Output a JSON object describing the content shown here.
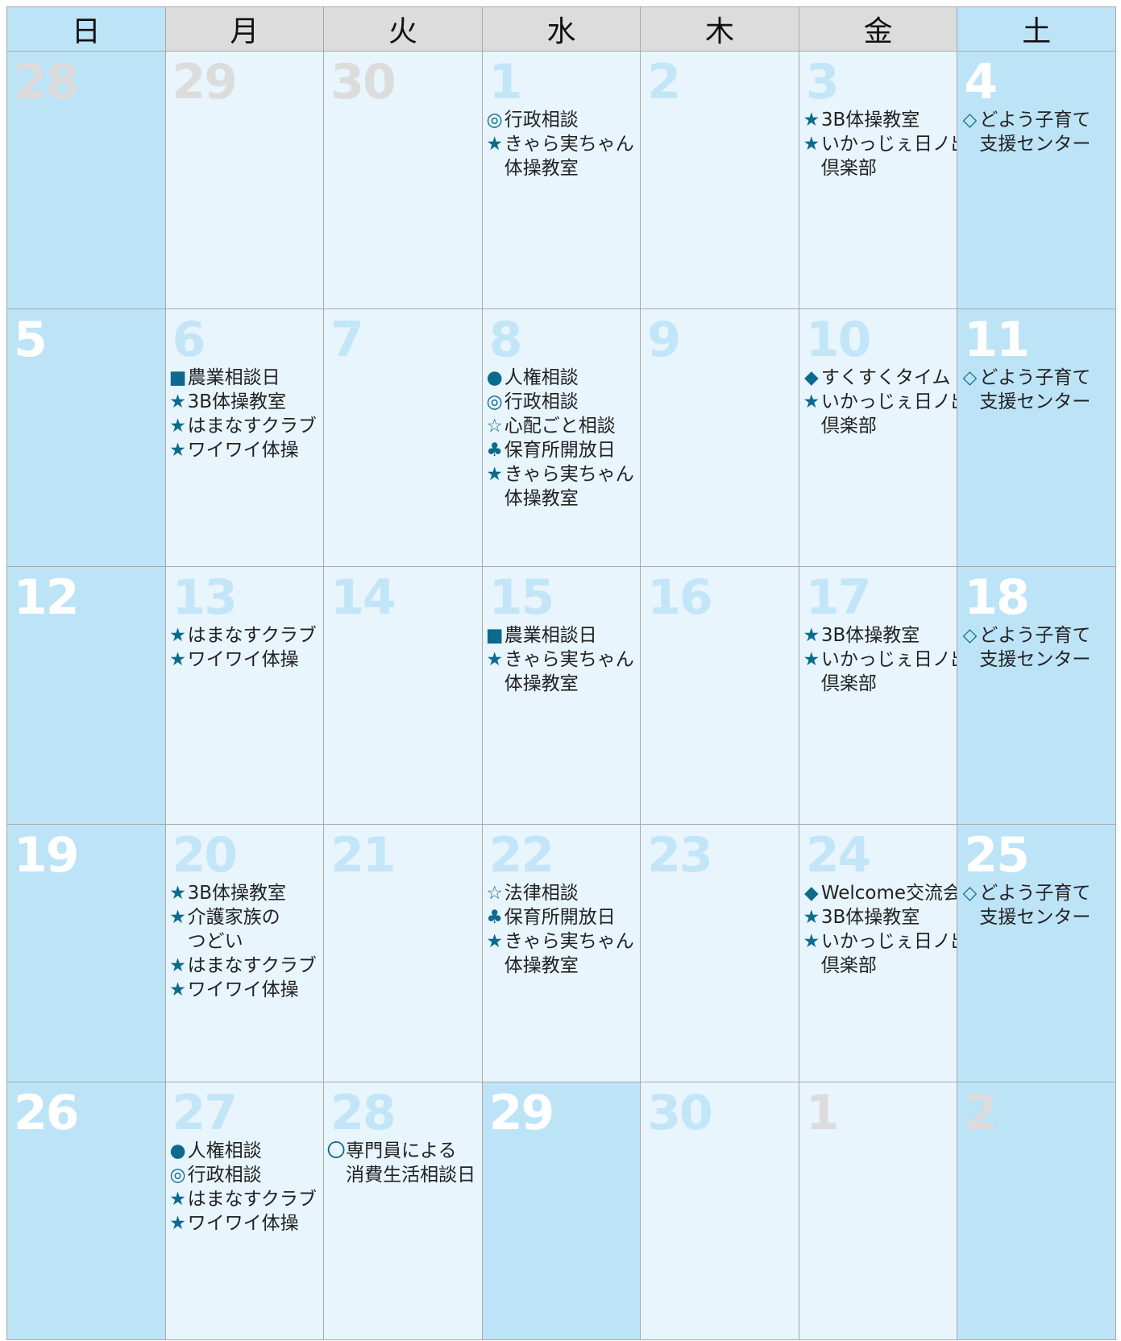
{
  "header": {
    "days": [
      "日",
      "月",
      "火",
      "水",
      "木",
      "金",
      "土"
    ]
  },
  "weeks": [
    [
      {
        "date": 28,
        "events": []
      },
      {
        "date": 29,
        "events": []
      },
      {
        "date": 30,
        "events": []
      },
      {
        "date": 1,
        "events": [
          {
            "mark": "◎",
            "lines": [
              "行政相談"
            ]
          },
          {
            "mark": "★",
            "lines": [
              "きゃら実ちゃん",
              "体操教室"
            ]
          }
        ]
      },
      {
        "date": 2,
        "events": []
      },
      {
        "date": 3,
        "events": [
          {
            "mark": "★",
            "lines": [
              "3B体操教室"
            ]
          },
          {
            "mark": "★",
            "lines": [
              "いかっじぇ日ノ出",
              "倶楽部"
            ]
          }
        ]
      },
      {
        "date": 4,
        "events": [
          {
            "mark": "◇",
            "lines": [
              "どよう子育て",
              "支援センター"
            ]
          }
        ]
      }
    ],
    [
      {
        "date": 5,
        "events": []
      },
      {
        "date": 6,
        "events": [
          {
            "mark": "■",
            "lines": [
              "農業相談日"
            ]
          },
          {
            "mark": "★",
            "lines": [
              "3B体操教室"
            ]
          },
          {
            "mark": "★",
            "lines": [
              "はまなすクラブ"
            ]
          },
          {
            "mark": "★",
            "lines": [
              "ワイワイ体操"
            ]
          }
        ]
      },
      {
        "date": 7,
        "events": []
      },
      {
        "date": 8,
        "events": [
          {
            "mark": "●",
            "lines": [
              "人権相談"
            ]
          },
          {
            "mark": "◎",
            "lines": [
              "行政相談"
            ]
          },
          {
            "mark": "☆",
            "lines": [
              "心配ごと相談"
            ]
          },
          {
            "mark": "♣",
            "lines": [
              "保育所開放日"
            ]
          },
          {
            "mark": "★",
            "lines": [
              "きゃら実ちゃん",
              "体操教室"
            ]
          }
        ]
      },
      {
        "date": 9,
        "events": []
      },
      {
        "date": 10,
        "events": [
          {
            "mark": "◆",
            "lines": [
              "すくすくタイム"
            ]
          },
          {
            "mark": "★",
            "lines": [
              "いかっじぇ日ノ出",
              "倶楽部"
            ]
          }
        ]
      },
      {
        "date": 11,
        "events": [
          {
            "mark": "◇",
            "lines": [
              "どよう子育て",
              "支援センター"
            ]
          }
        ]
      }
    ],
    [
      {
        "date": 12,
        "events": []
      },
      {
        "date": 13,
        "events": [
          {
            "mark": "★",
            "lines": [
              "はまなすクラブ"
            ]
          },
          {
            "mark": "★",
            "lines": [
              "ワイワイ体操"
            ]
          }
        ]
      },
      {
        "date": 14,
        "events": []
      },
      {
        "date": 15,
        "events": [
          {
            "mark": "■",
            "lines": [
              "農業相談日"
            ]
          },
          {
            "mark": "★",
            "lines": [
              "きゃら実ちゃん",
              "体操教室"
            ]
          }
        ]
      },
      {
        "date": 16,
        "events": []
      },
      {
        "date": 17,
        "events": [
          {
            "mark": "★",
            "lines": [
              "3B体操教室"
            ]
          },
          {
            "mark": "★",
            "lines": [
              "いかっじぇ日ノ出",
              "倶楽部"
            ]
          }
        ]
      },
      {
        "date": 18,
        "events": [
          {
            "mark": "◇",
            "lines": [
              "どよう子育て",
              "支援センター"
            ]
          }
        ]
      }
    ],
    [
      {
        "date": 19,
        "events": []
      },
      {
        "date": 20,
        "events": [
          {
            "mark": "★",
            "lines": [
              "3B体操教室"
            ]
          },
          {
            "mark": "★",
            "lines": [
              "介護家族の",
              "つどい"
            ]
          },
          {
            "mark": "★",
            "lines": [
              "はまなすクラブ"
            ]
          },
          {
            "mark": "★",
            "lines": [
              "ワイワイ体操"
            ]
          }
        ]
      },
      {
        "date": 21,
        "events": []
      },
      {
        "date": 22,
        "events": [
          {
            "mark": "☆",
            "lines": [
              "法律相談"
            ]
          },
          {
            "mark": "♣",
            "lines": [
              "保育所開放日"
            ]
          },
          {
            "mark": "★",
            "lines": [
              "きゃら実ちゃん",
              "体操教室"
            ]
          }
        ]
      },
      {
        "date": 23,
        "events": []
      },
      {
        "date": 24,
        "events": [
          {
            "mark": "◆",
            "lines": [
              "Welcome交流会"
            ]
          },
          {
            "mark": "★",
            "lines": [
              "3B体操教室"
            ]
          },
          {
            "mark": "★",
            "lines": [
              "いかっじぇ日ノ出",
              "倶楽部"
            ]
          }
        ]
      },
      {
        "date": 25,
        "events": [
          {
            "mark": "◇",
            "lines": [
              "どよう子育て",
              "支援センター"
            ]
          }
        ]
      }
    ],
    [
      {
        "date": 26,
        "events": []
      },
      {
        "date": 27,
        "events": [
          {
            "mark": "●",
            "lines": [
              "人権相談"
            ]
          },
          {
            "mark": "◎",
            "lines": [
              "行政相談"
            ]
          },
          {
            "mark": "★",
            "lines": [
              "はまなすクラブ"
            ]
          },
          {
            "mark": "★",
            "lines": [
              "ワイワイ体操"
            ]
          }
        ]
      },
      {
        "date": 28,
        "events": [
          {
            "mark": "〇",
            "lines": [
              "専門員による",
              "消費生活相談日"
            ]
          }
        ]
      },
      {
        "date": 29,
        "events": []
      },
      {
        "date": 30,
        "events": []
      },
      {
        "date": 1,
        "events": []
      },
      {
        "date": 2,
        "events": []
      }
    ]
  ]
}
